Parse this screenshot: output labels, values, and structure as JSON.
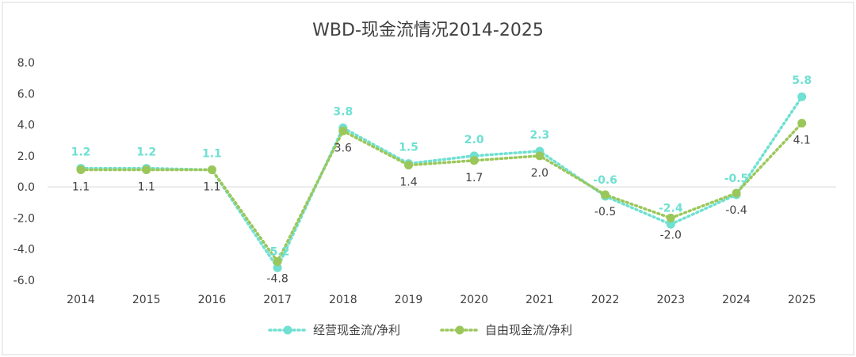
{
  "chart_data": {
    "type": "line",
    "title": "WBD-现金流情况2014-2025",
    "xlabel": "",
    "ylabel": "",
    "ylim": [
      -6.0,
      8.0
    ],
    "yticks": [
      "8.0",
      "6.0",
      "4.0",
      "2.0",
      "0.0",
      "-2.0",
      "-4.0",
      "-6.0"
    ],
    "ytick_values": [
      8,
      6,
      4,
      2,
      0,
      -2,
      -4,
      -6
    ],
    "x": [
      "2014",
      "2015",
      "2016",
      "2017",
      "2018",
      "2019",
      "2020",
      "2021",
      "2022",
      "2023",
      "2024",
      "2025"
    ],
    "grid": "horizontal-zero-line",
    "legend": "bottom-center",
    "series": [
      {
        "name": "经营现金流/净利",
        "color": "#6fe0d2",
        "style": "dotted",
        "values": [
          1.2,
          1.2,
          1.1,
          -5.2,
          3.8,
          1.5,
          2.0,
          2.3,
          -0.6,
          -2.4,
          -0.5,
          5.8
        ],
        "labels": [
          "1.2",
          "1.2",
          "1.1",
          "-5.2",
          "3.8",
          "1.5",
          "2.0",
          "2.3",
          "-0.6",
          "-2.4",
          "-0.5",
          "5.8"
        ],
        "label_position": "above"
      },
      {
        "name": "自由现金流/净利",
        "color": "#9bc75a",
        "style": "dotted",
        "values": [
          1.1,
          1.1,
          1.1,
          -4.8,
          3.6,
          1.4,
          1.7,
          2.0,
          -0.5,
          -2.0,
          -0.4,
          4.1
        ],
        "labels": [
          "1.1",
          "1.1",
          "1.1",
          "-4.8",
          "3.6",
          "1.4",
          "1.7",
          "2.0",
          "-0.5",
          "-2.0",
          "-0.4",
          "4.1"
        ],
        "label_position": "below"
      }
    ]
  }
}
